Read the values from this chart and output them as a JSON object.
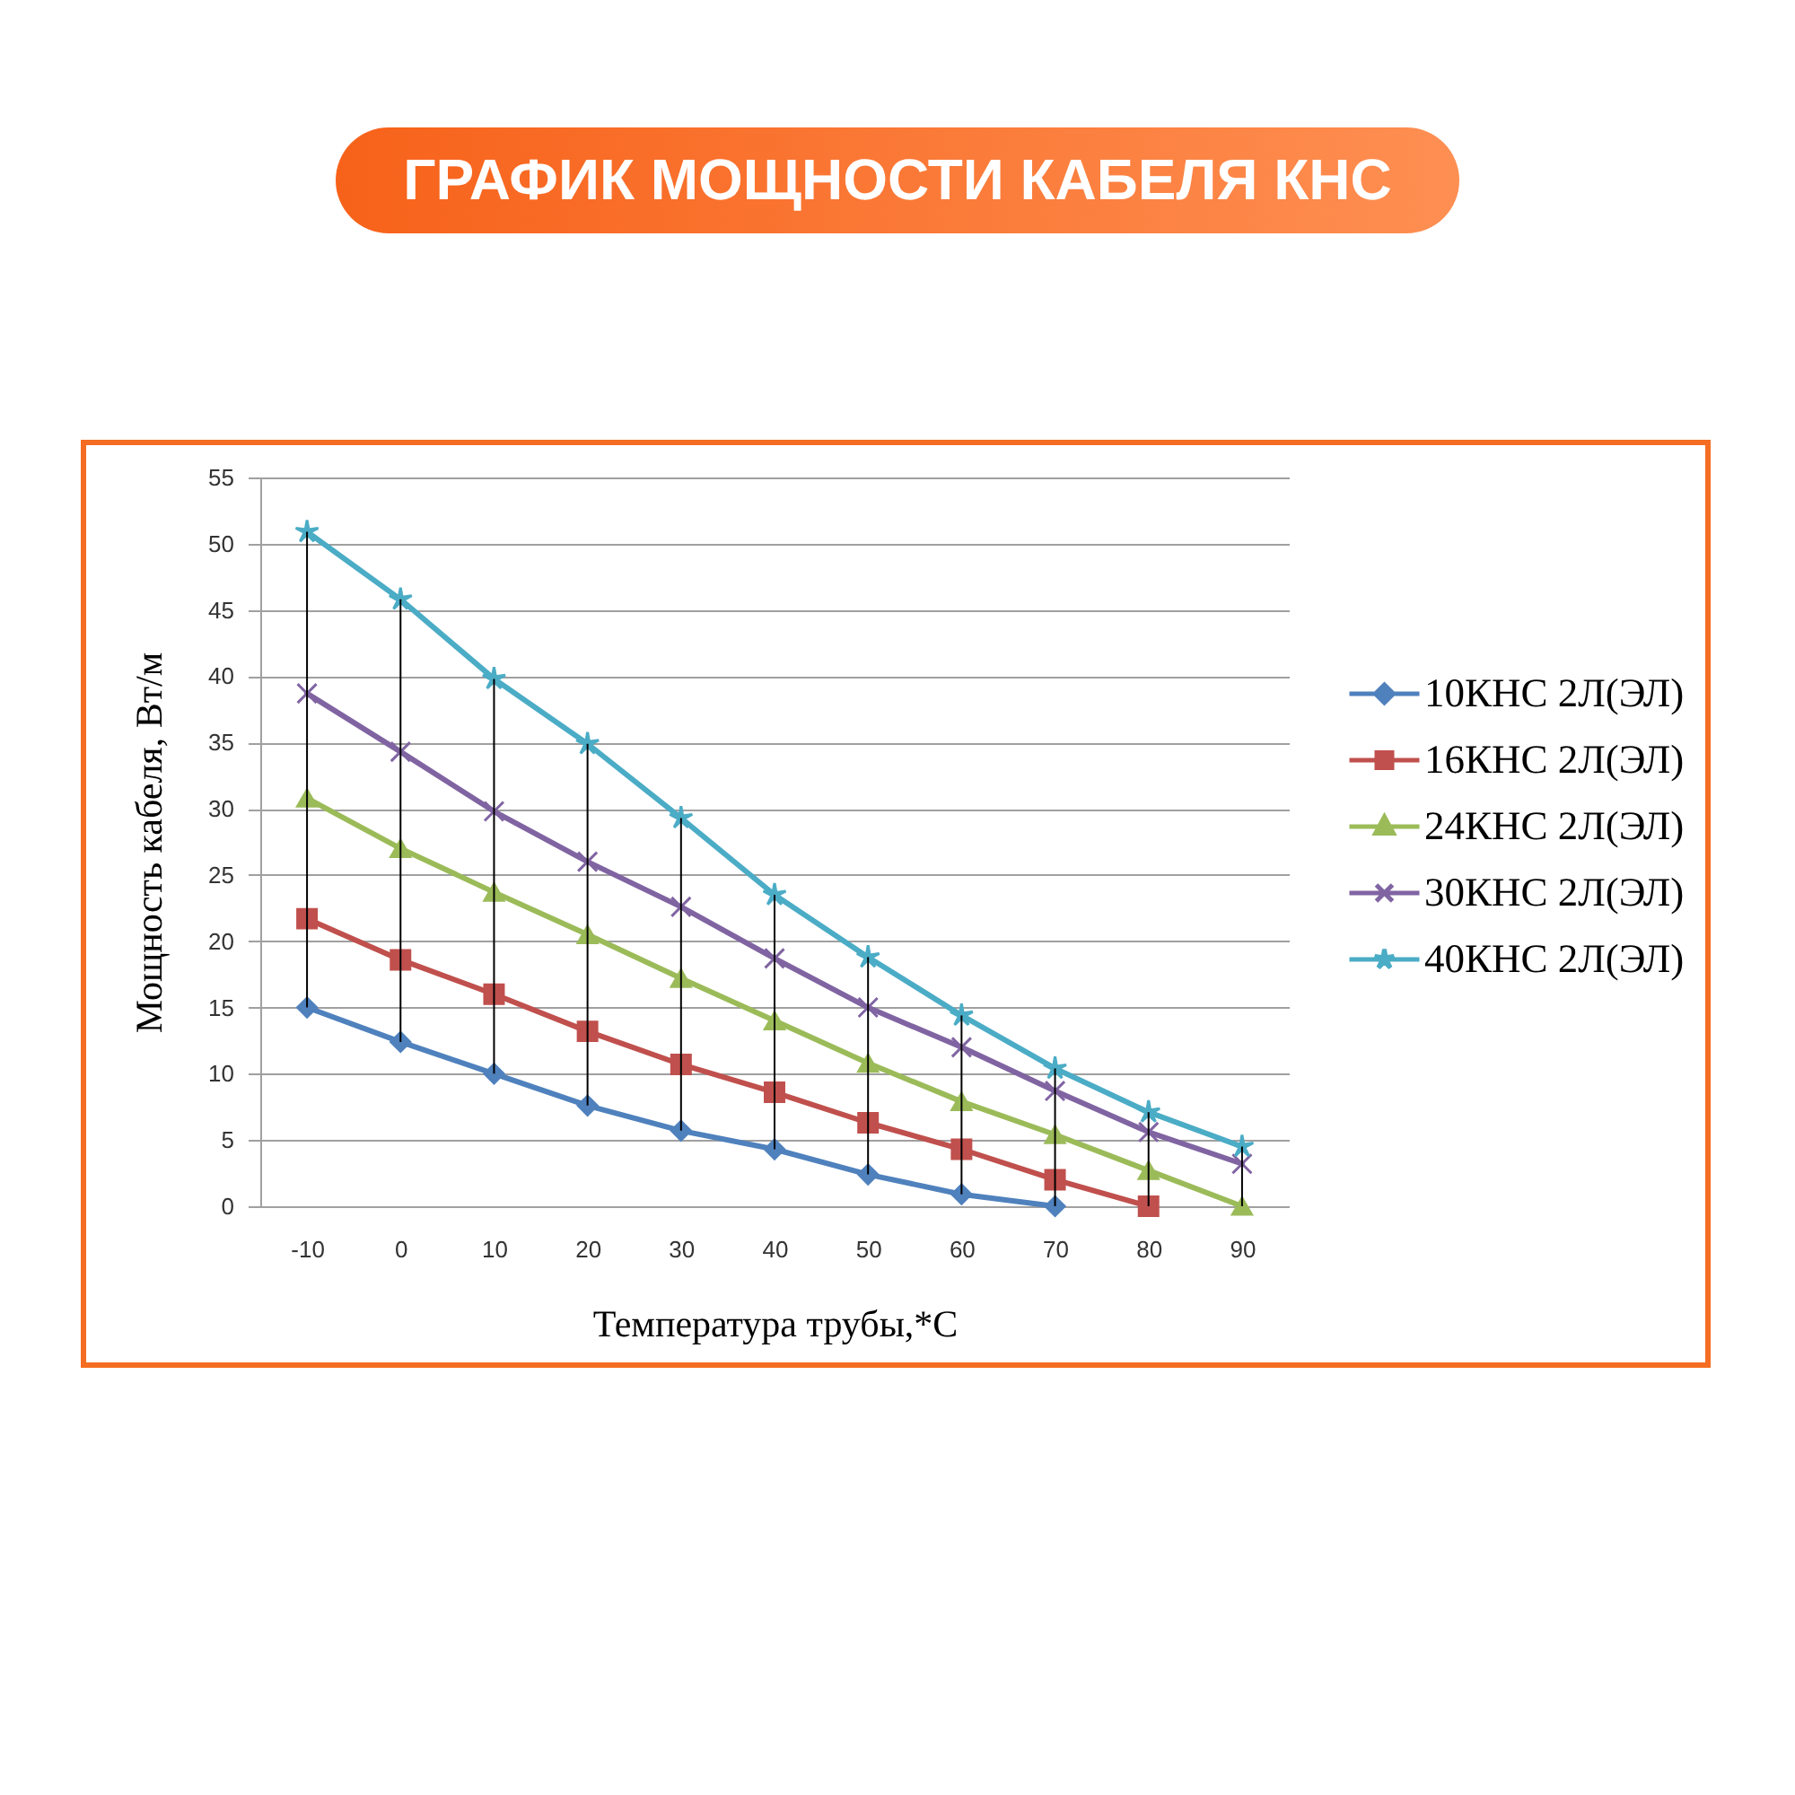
{
  "chart_data": {
    "type": "line",
    "title": "ГРАФИК МОЩНОСТИ КАБЕЛЯ КНС",
    "xlabel": "Температура трубы,*C",
    "ylabel": "Мощность кабеля, Вт/м",
    "categories": [
      "-10",
      "0",
      "10",
      "20",
      "30",
      "40",
      "50",
      "60",
      "70",
      "80",
      "90"
    ],
    "series": [
      {
        "name": "10КНС 2Л(ЭЛ)",
        "color": "#4f81bd",
        "marker": "diamond",
        "values": [
          15.0,
          12.4,
          10.0,
          7.6,
          5.7,
          4.3,
          2.4,
          0.9,
          0,
          null,
          null
        ]
      },
      {
        "name": "16КНС 2Л(ЭЛ)",
        "color": "#c0504d",
        "marker": "square",
        "values": [
          21.7,
          18.6,
          16.0,
          13.2,
          10.7,
          8.6,
          6.3,
          4.3,
          2.0,
          0,
          null
        ]
      },
      {
        "name": "24КНС 2Л(ЭЛ)",
        "color": "#9bbb59",
        "marker": "triangle",
        "values": [
          30.8,
          27.0,
          23.7,
          20.5,
          17.2,
          14.0,
          10.8,
          7.9,
          5.4,
          2.7,
          0
        ]
      },
      {
        "name": "30КНС 2Л(ЭЛ)",
        "color": "#8064a2",
        "marker": "cross",
        "values": [
          38.7,
          34.3,
          29.8,
          26.0,
          22.6,
          18.7,
          15.0,
          12.0,
          8.7,
          5.6,
          3.2
        ]
      },
      {
        "name": "40КНС 2Л(ЭЛ)",
        "color": "#4bacc6",
        "marker": "star",
        "values": [
          50.9,
          45.8,
          39.8,
          34.9,
          29.3,
          23.5,
          18.8,
          14.4,
          10.4,
          7.1,
          4.5
        ],
        "errors": [
          [
            15.0,
            50.9
          ],
          [
            12.4,
            45.8
          ],
          [
            10.0,
            39.8
          ],
          [
            7.6,
            34.9
          ],
          [
            5.7,
            29.3
          ],
          [
            4.3,
            23.5
          ],
          [
            2.4,
            18.8
          ],
          [
            0.9,
            14.4
          ],
          [
            0,
            10.4
          ],
          [
            0,
            7.1
          ],
          [
            0,
            4.5
          ]
        ]
      }
    ],
    "ylim": [
      0,
      55
    ],
    "yticks": [
      0,
      5,
      10,
      15,
      20,
      25,
      30,
      35,
      40,
      45,
      50,
      55
    ],
    "grid": "y",
    "legend": "right"
  }
}
